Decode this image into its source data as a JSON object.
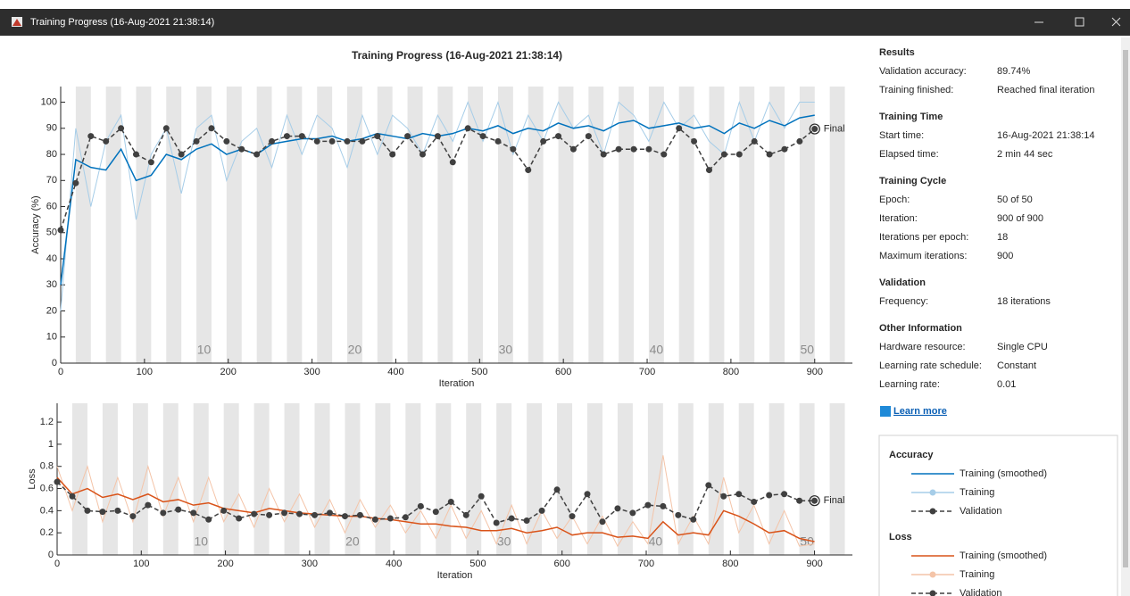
{
  "window": {
    "title": "Training Progress (16-Aug-2021 21:38:14)"
  },
  "chart_data": [
    {
      "type": "line",
      "title": "Training Progress (16-Aug-2021 21:38:14)",
      "xlabel": "Iteration",
      "ylabel": "Accuracy (%)",
      "x": [
        0,
        18,
        36,
        54,
        72,
        90,
        108,
        126,
        144,
        162,
        180,
        198,
        216,
        234,
        252,
        270,
        288,
        306,
        324,
        342,
        360,
        378,
        396,
        414,
        432,
        450,
        468,
        486,
        504,
        522,
        540,
        558,
        576,
        594,
        612,
        630,
        648,
        666,
        684,
        702,
        720,
        738,
        756,
        774,
        792,
        810,
        828,
        846,
        864,
        882,
        900
      ],
      "xlim": [
        0,
        945
      ],
      "ylim": [
        0,
        106
      ],
      "xticks": [
        0,
        100,
        200,
        300,
        400,
        500,
        600,
        700,
        800,
        900
      ],
      "yticks": [
        0,
        10,
        20,
        30,
        40,
        50,
        60,
        70,
        80,
        90,
        100
      ],
      "epoch_labels": [
        10,
        20,
        30,
        40,
        50
      ],
      "annotation": "Final",
      "series": [
        {
          "name": "Training (smoothed)",
          "color": "#0072bd",
          "values": [
            30,
            78,
            75,
            74,
            82,
            70,
            72,
            80,
            78,
            82,
            84,
            80,
            82,
            80,
            84,
            85,
            86,
            86,
            87,
            85,
            86,
            88,
            87,
            86,
            88,
            87,
            88,
            90,
            89,
            91,
            88,
            90,
            89,
            92,
            90,
            91,
            89,
            92,
            93,
            90,
            91,
            92,
            90,
            91,
            88,
            92,
            90,
            93,
            91,
            94,
            95
          ]
        },
        {
          "name": "Training",
          "color": "#a6cde8",
          "values": [
            20,
            90,
            60,
            85,
            95,
            55,
            80,
            90,
            65,
            90,
            95,
            70,
            85,
            90,
            75,
            95,
            80,
            95,
            90,
            75,
            95,
            80,
            95,
            90,
            80,
            95,
            85,
            100,
            85,
            100,
            80,
            95,
            85,
            100,
            90,
            95,
            80,
            100,
            95,
            85,
            100,
            90,
            95,
            85,
            80,
            100,
            85,
            100,
            90,
            100,
            100
          ]
        },
        {
          "name": "Validation",
          "color": "#404040",
          "values": [
            51,
            69,
            87,
            85,
            90,
            80,
            77,
            90,
            80,
            85,
            90,
            85,
            82,
            80,
            85,
            87,
            87,
            85,
            85,
            85,
            85,
            87,
            80,
            87,
            80,
            87,
            77,
            90,
            87,
            85,
            82,
            74,
            85,
            87,
            82,
            87,
            80,
            82,
            82,
            82,
            80,
            90,
            85,
            74,
            80,
            80,
            85,
            80,
            82,
            85,
            89.74
          ]
        }
      ]
    },
    {
      "type": "line",
      "xlabel": "Iteration",
      "ylabel": "Loss",
      "x": [
        0,
        18,
        36,
        54,
        72,
        90,
        108,
        126,
        144,
        162,
        180,
        198,
        216,
        234,
        252,
        270,
        288,
        306,
        324,
        342,
        360,
        378,
        396,
        414,
        432,
        450,
        468,
        486,
        504,
        522,
        540,
        558,
        576,
        594,
        612,
        630,
        648,
        666,
        684,
        702,
        720,
        738,
        756,
        774,
        792,
        810,
        828,
        846,
        864,
        882,
        900
      ],
      "xlim": [
        0,
        945
      ],
      "ylim": [
        0,
        1.37
      ],
      "xticks": [
        0,
        100,
        200,
        300,
        400,
        500,
        600,
        700,
        800,
        900
      ],
      "yticks": [
        0,
        0.2,
        0.4,
        0.6,
        0.8,
        1,
        1.2
      ],
      "epoch_labels": [
        10,
        20,
        30,
        40,
        50
      ],
      "annotation": "Final",
      "series": [
        {
          "name": "Training (smoothed)",
          "color": "#d95319",
          "values": [
            0.7,
            0.55,
            0.6,
            0.52,
            0.55,
            0.5,
            0.55,
            0.48,
            0.5,
            0.45,
            0.47,
            0.42,
            0.4,
            0.38,
            0.42,
            0.4,
            0.38,
            0.37,
            0.36,
            0.35,
            0.35,
            0.33,
            0.32,
            0.3,
            0.28,
            0.28,
            0.26,
            0.25,
            0.22,
            0.22,
            0.24,
            0.2,
            0.22,
            0.25,
            0.18,
            0.2,
            0.2,
            0.16,
            0.17,
            0.15,
            0.3,
            0.18,
            0.2,
            0.18,
            0.4,
            0.35,
            0.28,
            0.2,
            0.22,
            0.15,
            0.12
          ]
        },
        {
          "name": "Training",
          "color": "#f4c4a8",
          "values": [
            0.8,
            0.4,
            0.8,
            0.3,
            0.7,
            0.3,
            0.8,
            0.35,
            0.7,
            0.3,
            0.7,
            0.3,
            0.55,
            0.25,
            0.6,
            0.3,
            0.55,
            0.25,
            0.5,
            0.2,
            0.5,
            0.25,
            0.45,
            0.2,
            0.4,
            0.15,
            0.45,
            0.15,
            0.4,
            0.1,
            0.45,
            0.1,
            0.4,
            0.15,
            0.35,
            0.1,
            0.35,
            0.08,
            0.3,
            0.1,
            0.9,
            0.1,
            0.35,
            0.1,
            0.7,
            0.2,
            0.45,
            0.1,
            0.4,
            0.08,
            0.1
          ]
        },
        {
          "name": "Validation",
          "color": "#404040",
          "values": [
            0.66,
            0.53,
            0.4,
            0.39,
            0.4,
            0.35,
            0.45,
            0.38,
            0.41,
            0.38,
            0.32,
            0.4,
            0.33,
            0.37,
            0.36,
            0.38,
            0.37,
            0.36,
            0.38,
            0.35,
            0.36,
            0.32,
            0.33,
            0.34,
            0.44,
            0.39,
            0.48,
            0.36,
            0.53,
            0.29,
            0.33,
            0.31,
            0.4,
            0.59,
            0.35,
            0.55,
            0.3,
            0.42,
            0.38,
            0.45,
            0.44,
            0.36,
            0.32,
            0.63,
            0.53,
            0.55,
            0.48,
            0.54,
            0.55,
            0.49,
            0.49
          ]
        }
      ]
    }
  ],
  "panel": {
    "sections": [
      {
        "heading": "Results",
        "rows": [
          [
            "Validation accuracy:",
            "89.74%"
          ],
          [
            "Training finished:",
            "Reached final iteration"
          ]
        ]
      },
      {
        "heading": "Training Time",
        "rows": [
          [
            "Start time:",
            "16-Aug-2021 21:38:14"
          ],
          [
            "Elapsed time:",
            "2 min 44 sec"
          ]
        ]
      },
      {
        "heading": "Training Cycle",
        "rows": [
          [
            "Epoch:",
            "50 of 50"
          ],
          [
            "Iteration:",
            "900 of 900"
          ],
          [
            "Iterations per epoch:",
            "18"
          ],
          [
            "Maximum iterations:",
            "900"
          ]
        ]
      },
      {
        "heading": "Validation",
        "rows": [
          [
            "Frequency:",
            "18 iterations"
          ]
        ]
      },
      {
        "heading": "Other Information",
        "rows": [
          [
            "Hardware resource:",
            "Single CPU"
          ],
          [
            "Learning rate schedule:",
            "Constant"
          ],
          [
            "Learning rate:",
            "0.01"
          ]
        ]
      }
    ],
    "learn_more": "Learn more"
  },
  "legend": {
    "headings": [
      "Accuracy",
      "Loss"
    ]
  }
}
